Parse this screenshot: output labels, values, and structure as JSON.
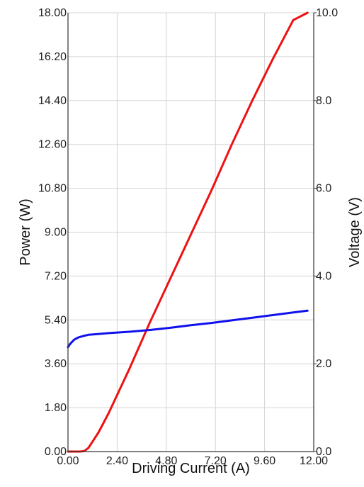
{
  "chart_data": {
    "type": "line",
    "title": "",
    "xlabel": "Driving Current (A)",
    "ylabel": "Power (W)",
    "y2label": "Voltage (V)",
    "xlim": [
      0,
      12
    ],
    "ylim": [
      0,
      18
    ],
    "y2lim": [
      0,
      10
    ],
    "grid": true,
    "legend": "none",
    "x_ticks": [
      "0.00",
      "2.40",
      "4.80",
      "7.20",
      "9.60",
      "12.00"
    ],
    "y_ticks": [
      "0.00",
      "1.80",
      "3.60",
      "5.40",
      "7.20",
      "9.00",
      "10.80",
      "12.60",
      "14.40",
      "16.20",
      "18.00"
    ],
    "y2_ticks": [
      "0.0",
      "2.0",
      "4.0",
      "6.0",
      "8.0",
      "10.0"
    ],
    "series": [
      {
        "axis": "left",
        "color": "#ee1111",
        "x": [
          0.0,
          0.6,
          0.8,
          1.0,
          1.5,
          2.0,
          3.0,
          4.0,
          5.0,
          6.0,
          7.0,
          8.0,
          9.0,
          10.0,
          11.0,
          11.7
        ],
        "y": [
          0.0,
          0.0,
          0.02,
          0.15,
          0.8,
          1.6,
          3.4,
          5.3,
          7.1,
          8.9,
          10.7,
          12.6,
          14.4,
          16.1,
          17.7,
          18.0
        ]
      },
      {
        "axis": "right",
        "color": "#1111ee",
        "x": [
          0.0,
          0.1,
          0.3,
          0.5,
          0.8,
          1.0,
          1.5,
          2.0,
          3.0,
          4.0,
          5.0,
          6.0,
          7.0,
          8.0,
          9.0,
          10.0,
          11.0,
          11.7
        ],
        "y": [
          2.38,
          2.45,
          2.55,
          2.6,
          2.64,
          2.66,
          2.68,
          2.7,
          2.73,
          2.77,
          2.82,
          2.88,
          2.93,
          2.99,
          3.05,
          3.11,
          3.17,
          3.21
        ]
      }
    ]
  }
}
